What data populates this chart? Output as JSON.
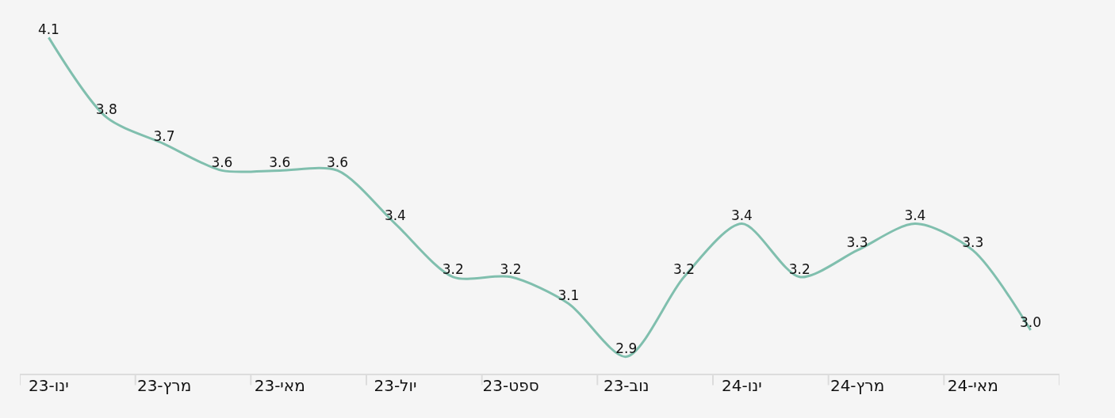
{
  "chart_data": {
    "type": "line",
    "categories": [
      "ינו-23",
      null,
      "מרץ-23",
      null,
      "מאי-23",
      null,
      "יול-23",
      null,
      "ספט-23",
      null,
      "נוב-23",
      null,
      "ינו-24",
      null,
      "מרץ-24",
      null,
      "מאי-24",
      null
    ],
    "series": [
      {
        "color": "#80bfae",
        "values": [
          4.1,
          3.8,
          3.7,
          3.6,
          3.6,
          3.6,
          3.4,
          3.2,
          3.2,
          3.1,
          2.9,
          3.2,
          3.4,
          3.2,
          3.3,
          3.4,
          3.3,
          3.0
        ],
        "value_labels": [
          "4.1",
          "3.8",
          "3.7",
          "3.6",
          "3.6",
          "3.6",
          "3.4",
          "3.2",
          "3.2",
          "3.1",
          "2.9",
          "3.2",
          "3.4",
          "3.2",
          "3.3",
          "3.4",
          "3.3",
          "3.0"
        ]
      }
    ],
    "grid": false,
    "marker": "none",
    "line_style": "solid"
  }
}
